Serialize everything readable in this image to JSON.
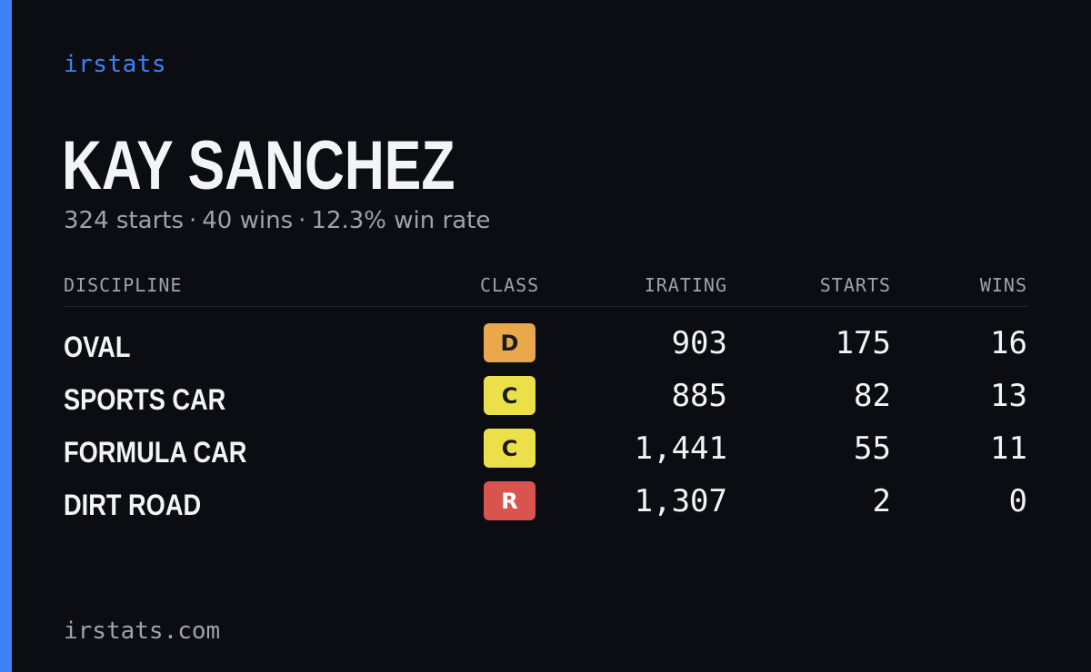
{
  "brand": "irstats",
  "driver": {
    "name": "KAY SANCHEZ",
    "starts_text": "324 starts",
    "wins_text": "40 wins",
    "win_rate_text": "12.3% win rate",
    "separator": "·"
  },
  "table": {
    "headers": {
      "discipline": "DISCIPLINE",
      "class": "CLASS",
      "irating": "IRATING",
      "starts": "STARTS",
      "wins": "WINS"
    },
    "rows": [
      {
        "discipline": "OVAL",
        "class": "D",
        "class_color": "#e8a84b",
        "irating": "903",
        "starts": "175",
        "wins": "16"
      },
      {
        "discipline": "SPORTS CAR",
        "class": "C",
        "class_color": "#ece04a",
        "irating": "885",
        "starts": "82",
        "wins": "13"
      },
      {
        "discipline": "FORMULA CAR",
        "class": "C",
        "class_color": "#ece04a",
        "irating": "1,441",
        "starts": "55",
        "wins": "11"
      },
      {
        "discipline": "DIRT ROAD",
        "class": "R",
        "class_color": "#d9534f",
        "irating": "1,307",
        "starts": "2",
        "wins": "0"
      }
    ]
  },
  "footer": "irstats.com",
  "colors": {
    "background": "#0b0d13",
    "accent": "#3b82f6"
  }
}
